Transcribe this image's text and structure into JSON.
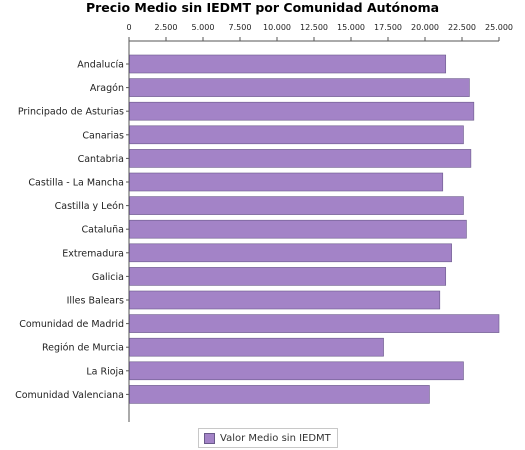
{
  "chart_data": {
    "type": "bar",
    "orientation": "horizontal",
    "title": "Precio Medio sin IEDMT por Comunidad Autónoma",
    "categories": [
      "Andalucía",
      "Aragón",
      "Principado de Asturias",
      "Canarias",
      "Cantabria",
      "Castilla - La Mancha",
      "Castilla y León",
      "Cataluña",
      "Extremadura",
      "Galicia",
      "Illes Balears",
      "Comunidad de Madrid",
      "Región de Murcia",
      "La Rioja",
      "Comunidad Valenciana"
    ],
    "series": [
      {
        "name": "Valor Medio sin IEDMT",
        "values": [
          21400,
          23000,
          23300,
          22600,
          23100,
          21200,
          22600,
          22800,
          21800,
          21400,
          21000,
          25000,
          17200,
          22600,
          20300
        ]
      }
    ],
    "xlim": [
      0,
      25000
    ],
    "ticks": [
      "0",
      "2.500",
      "5.000",
      "7.500",
      "10.000",
      "12.500",
      "15.000",
      "17.500",
      "20.000",
      "22.500",
      "25.000"
    ],
    "tick_values": [
      0,
      2500,
      5000,
      7500,
      10000,
      12500,
      15000,
      17500,
      20000,
      22500,
      25000
    ],
    "grid": false,
    "legend_position": "bottom",
    "colors": {
      "bar_fill": "#a383c7",
      "bar_stroke": "#6a5a8a",
      "axis": "#555555"
    }
  }
}
